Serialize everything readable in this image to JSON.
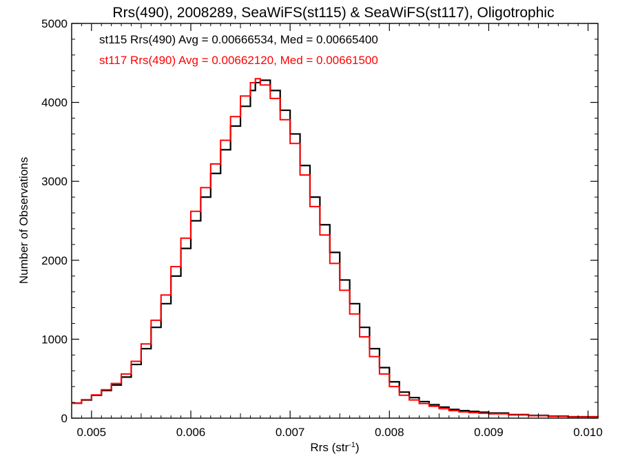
{
  "chart_data": {
    "type": "histogram",
    "title": "Rrs(490), 2008289, SeaWiFS(st115) & SeaWiFS(st117), Oligotrophic",
    "xlabel_main": "Rrs (str",
    "xlabel_sup": "-1",
    "xlabel_close": ")",
    "ylabel": "Number of Observations",
    "xlim": [
      0.0048,
      0.0101
    ],
    "ylim": [
      0,
      5000
    ],
    "xticks": [
      0.005,
      0.006,
      0.007,
      0.008,
      0.009,
      0.01
    ],
    "xtick_labels": [
      "0.005",
      "0.006",
      "0.007",
      "0.008",
      "0.009",
      "0.010"
    ],
    "yticks": [
      0,
      1000,
      2000,
      3000,
      4000,
      5000
    ],
    "ytick_labels": [
      "0",
      "1000",
      "2000",
      "3000",
      "4000",
      "5000"
    ],
    "grid": false,
    "series": [
      {
        "name": "st115",
        "color": "#000000",
        "legend_text": "st115 Rrs(490) Avg = 0.00666534, Med = 0.00665400",
        "x": [
          0.0048,
          0.0049,
          0.005,
          0.0051,
          0.0052,
          0.0053,
          0.0054,
          0.0055,
          0.0056,
          0.0057,
          0.0058,
          0.0059,
          0.006,
          0.0061,
          0.0062,
          0.0063,
          0.0064,
          0.0065,
          0.0066,
          0.00665,
          0.0067,
          0.0068,
          0.0069,
          0.007,
          0.0071,
          0.0072,
          0.0073,
          0.0074,
          0.0075,
          0.0076,
          0.0077,
          0.0078,
          0.0079,
          0.008,
          0.0081,
          0.0082,
          0.0083,
          0.0084,
          0.0085,
          0.0086,
          0.0087,
          0.0088,
          0.0089,
          0.009,
          0.0092,
          0.0094,
          0.0096,
          0.0098,
          0.0101
        ],
        "y": [
          190,
          230,
          290,
          350,
          420,
          520,
          680,
          880,
          1150,
          1450,
          1800,
          2150,
          2500,
          2800,
          3100,
          3400,
          3700,
          3950,
          4150,
          4250,
          4280,
          4150,
          3900,
          3600,
          3200,
          2800,
          2450,
          2100,
          1750,
          1450,
          1150,
          880,
          640,
          460,
          330,
          260,
          210,
          170,
          140,
          110,
          95,
          85,
          75,
          65,
          45,
          35,
          25,
          18,
          10
        ]
      },
      {
        "name": "st117",
        "color": "#ff0000",
        "legend_text": "st117 Rrs(490) Avg = 0.00662120, Med = 0.00661500",
        "x": [
          0.0048,
          0.0049,
          0.005,
          0.0051,
          0.0052,
          0.0053,
          0.0054,
          0.0055,
          0.0056,
          0.0057,
          0.0058,
          0.0059,
          0.006,
          0.0061,
          0.0062,
          0.0063,
          0.0064,
          0.0065,
          0.0066,
          0.00665,
          0.0067,
          0.0068,
          0.0069,
          0.007,
          0.0071,
          0.0072,
          0.0073,
          0.0074,
          0.0075,
          0.0076,
          0.0077,
          0.0078,
          0.0079,
          0.008,
          0.0081,
          0.0082,
          0.0083,
          0.0084,
          0.0085,
          0.0086,
          0.0087,
          0.0088,
          0.0089,
          0.009,
          0.0092,
          0.0094,
          0.0096,
          0.0098,
          0.0101
        ],
        "y": [
          190,
          235,
          295,
          360,
          440,
          560,
          720,
          940,
          1240,
          1560,
          1920,
          2280,
          2620,
          2920,
          3220,
          3520,
          3820,
          4080,
          4250,
          4300,
          4220,
          4050,
          3780,
          3480,
          3080,
          2680,
          2320,
          1960,
          1620,
          1320,
          1030,
          780,
          560,
          400,
          290,
          230,
          185,
          150,
          120,
          95,
          80,
          70,
          62,
          55,
          40,
          30,
          22,
          15,
          8
        ]
      }
    ]
  }
}
